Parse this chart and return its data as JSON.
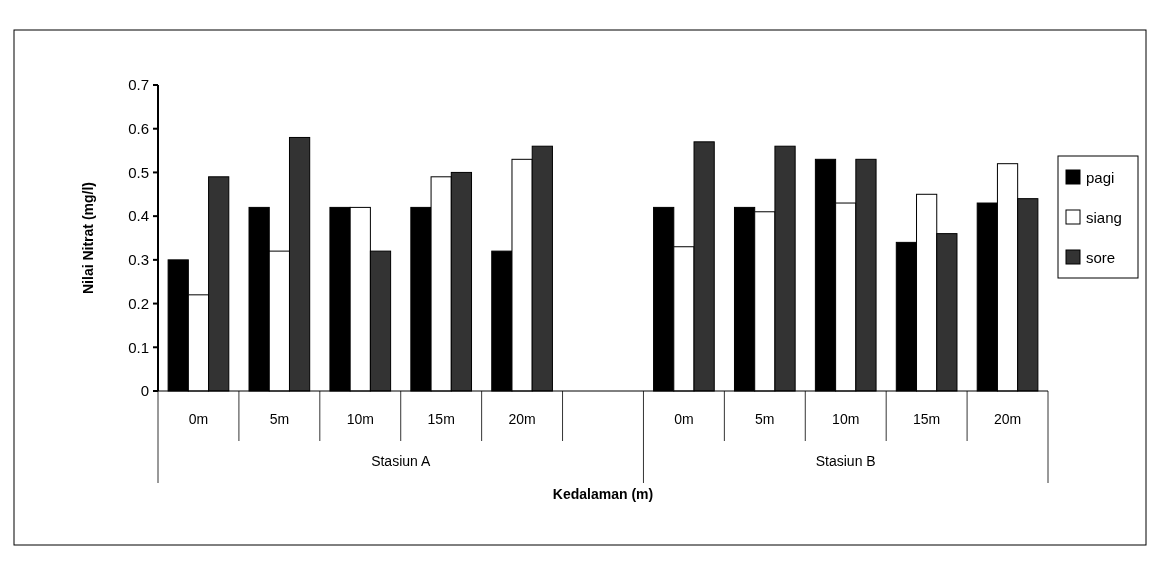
{
  "chart_data": {
    "type": "bar",
    "xlabel": "Kedalaman (m)",
    "ylabel": "Nilai Nitrat (mg/l)",
    "categories": [
      "0m",
      "5m",
      "10m",
      "15m",
      "20m",
      null,
      "0m",
      "5m",
      "10m",
      "15m",
      "20m"
    ],
    "series": [
      {
        "name": "pagi",
        "color": "#000000",
        "values": [
          0.3,
          0.42,
          0.42,
          0.42,
          0.32,
          null,
          0.42,
          0.42,
          0.53,
          0.34,
          0.43
        ]
      },
      {
        "name": "siang",
        "color": "#ffffff",
        "values": [
          0.22,
          0.32,
          0.42,
          0.49,
          0.53,
          null,
          0.33,
          0.41,
          0.43,
          0.45,
          0.52
        ]
      },
      {
        "name": "sore",
        "color": "#333333",
        "values": [
          0.49,
          0.58,
          0.32,
          0.5,
          0.56,
          null,
          0.57,
          0.56,
          0.53,
          0.36,
          0.44
        ]
      }
    ],
    "annotations": [
      "Stasiun A",
      "Stasiun B"
    ],
    "ylim": [
      0,
      0.7
    ],
    "yticks": [
      0,
      0.1,
      0.2,
      0.3,
      0.4,
      0.5,
      0.6,
      0.7
    ],
    "grid": false,
    "legend": "right"
  }
}
